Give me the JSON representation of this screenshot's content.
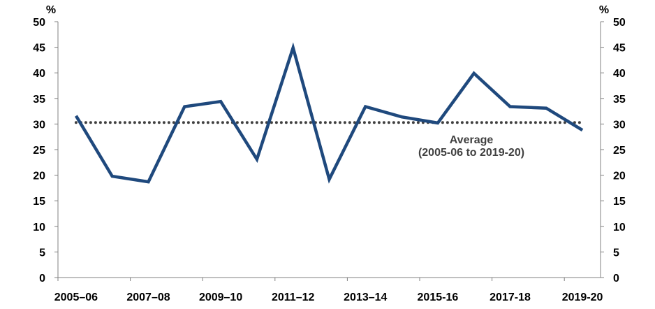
{
  "chart_data": {
    "type": "line",
    "y_unit": "%",
    "ylim": [
      0,
      50
    ],
    "yticks": [
      "0",
      "5",
      "10",
      "15",
      "20",
      "25",
      "30",
      "35",
      "40",
      "45",
      "50"
    ],
    "categories": [
      "2005–06",
      "2006–07",
      "2007–08",
      "2008–09",
      "2009–10",
      "2010–11",
      "2011–12",
      "2012–13",
      "2013–14",
      "2014–15",
      "2015-16",
      "2016-17",
      "2017-18",
      "2018-19",
      "2019-20"
    ],
    "x_tick_labels": [
      "2005–06",
      "2007–08",
      "2009–10",
      "2011–12",
      "2013–14",
      "2015-16",
      "2017-18",
      "2019-20"
    ],
    "series": [
      {
        "values": [
          31.6,
          19.8,
          18.7,
          33.4,
          34.4,
          23.1,
          44.9,
          19.2,
          33.4,
          31.4,
          30.2,
          39.9,
          33.4,
          33.1,
          28.8
        ],
        "color": "#1F497D"
      }
    ],
    "average": {
      "value": 30.3,
      "label_line1": "Average",
      "label_line2": "(2005-06 to 2019-20)",
      "color": "#404040"
    },
    "grid": false,
    "legend": "none"
  }
}
